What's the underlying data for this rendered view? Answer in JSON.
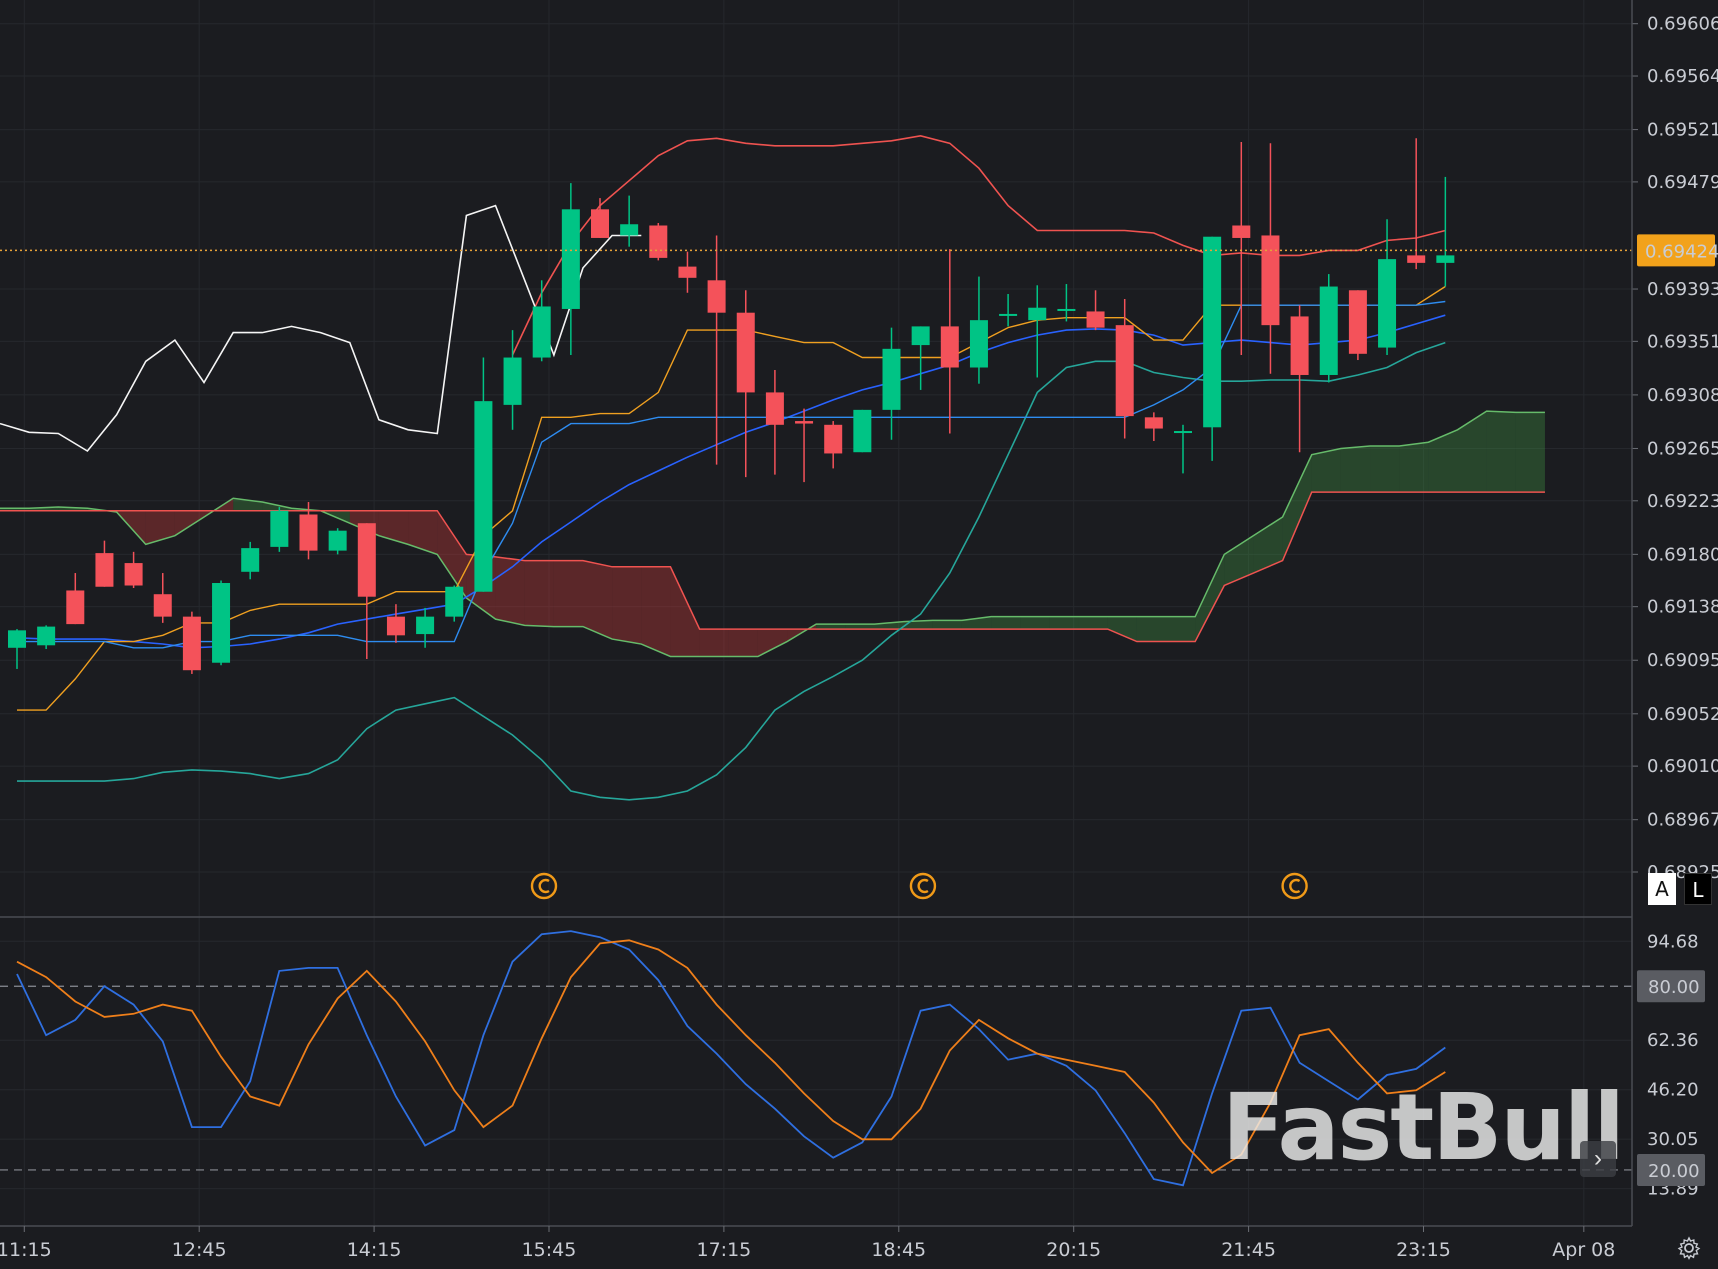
{
  "chart_data": [
    {
      "type": "candlestick",
      "price_axis_labels": [
        "0.69606",
        "0.69564",
        "0.69521",
        "0.69479",
        "0.69393",
        "0.69351",
        "0.69308",
        "0.69265",
        "0.69223",
        "0.69180",
        "0.69138",
        "0.69095",
        "0.69052",
        "0.69010",
        "0.68967",
        "0.68925"
      ],
      "ylim": [
        0.68925,
        0.69617
      ],
      "current_price": "0.69424",
      "time_labels": [
        {
          "label": "11:15",
          "i": 0.25
        },
        {
          "label": "12:45",
          "i": 6.25
        },
        {
          "label": "14:15",
          "i": 12.25
        },
        {
          "label": "15:45",
          "i": 18.25
        },
        {
          "label": "17:15",
          "i": 24.25
        },
        {
          "label": "18:45",
          "i": 30.25
        },
        {
          "label": "20:15",
          "i": 36.25
        },
        {
          "label": "21:45",
          "i": 42.25
        },
        {
          "label": "23:15",
          "i": 48.25
        },
        {
          "label": "Apr 08",
          "i": 53.75
        }
      ],
      "candles": [
        [
          0.69105,
          0.69119,
          0.69088,
          0.6912
        ],
        [
          0.69107,
          0.69122,
          0.69104,
          0.69123
        ],
        [
          0.69151,
          0.69124,
          0.69124,
          0.69165
        ],
        [
          0.69181,
          0.69154,
          0.69154,
          0.69191
        ],
        [
          0.69173,
          0.69155,
          0.69153,
          0.69182
        ],
        [
          0.69148,
          0.6913,
          0.69125,
          0.69165
        ],
        [
          0.6913,
          0.69087,
          0.69084,
          0.69134
        ],
        [
          0.69093,
          0.69157,
          0.69091,
          0.69159
        ],
        [
          0.69166,
          0.69185,
          0.6916,
          0.6919
        ],
        [
          0.69186,
          0.69215,
          0.69182,
          0.69218
        ],
        [
          0.69212,
          0.69183,
          0.69176,
          0.69222
        ],
        [
          0.69183,
          0.69199,
          0.6918,
          0.69201
        ],
        [
          0.69205,
          0.69146,
          0.69096,
          0.69205
        ],
        [
          0.6913,
          0.69115,
          0.69109,
          0.6914
        ],
        [
          0.69116,
          0.6913,
          0.69105,
          0.69137
        ],
        [
          0.6913,
          0.69154,
          0.69126,
          0.69155
        ],
        [
          0.6915,
          0.69303,
          0.6915,
          0.69338
        ],
        [
          0.693,
          0.69338,
          0.6928,
          0.6936
        ],
        [
          0.69338,
          0.69379,
          0.69335,
          0.694
        ],
        [
          0.69377,
          0.69457,
          0.6934,
          0.69478
        ],
        [
          0.69457,
          0.69434,
          0.69434,
          0.69466
        ],
        [
          0.69436,
          0.69445,
          0.69427,
          0.69468
        ],
        [
          0.69444,
          0.69418,
          0.69416,
          0.69446
        ],
        [
          0.69411,
          0.69402,
          0.6939,
          0.69423
        ],
        [
          0.694,
          0.69374,
          0.69252,
          0.69436
        ],
        [
          0.69374,
          0.6931,
          0.69242,
          0.69392
        ],
        [
          0.6931,
          0.69284,
          0.69244,
          0.69328
        ],
        [
          0.69287,
          0.69285,
          0.69238,
          0.69297
        ],
        [
          0.69284,
          0.69261,
          0.69249,
          0.69287
        ],
        [
          0.69262,
          0.69296,
          0.69262,
          0.69296
        ],
        [
          0.69296,
          0.69345,
          0.69272,
          0.69362
        ],
        [
          0.69348,
          0.69363,
          0.69312,
          0.69363
        ],
        [
          0.69363,
          0.6933,
          0.69277,
          0.69425
        ],
        [
          0.6933,
          0.69368,
          0.69317,
          0.69403
        ],
        [
          0.69373,
          0.69373,
          0.69363,
          0.69389
        ],
        [
          0.69368,
          0.69378,
          0.69322,
          0.69396
        ],
        [
          0.69377,
          0.69377,
          0.69367,
          0.69397
        ],
        [
          0.69375,
          0.69362,
          0.6936,
          0.69392
        ],
        [
          0.69364,
          0.69291,
          0.69273,
          0.69385
        ],
        [
          0.6929,
          0.69281,
          0.69271,
          0.69294
        ],
        [
          0.69279,
          0.69279,
          0.69245,
          0.69284
        ],
        [
          0.69282,
          0.69435,
          0.69255,
          0.69435
        ],
        [
          0.69444,
          0.69434,
          0.6934,
          0.69511
        ],
        [
          0.69436,
          0.69364,
          0.69325,
          0.6951
        ],
        [
          0.69371,
          0.69324,
          0.69262,
          0.6938
        ],
        [
          0.69324,
          0.69395,
          0.69318,
          0.69405
        ],
        [
          0.69392,
          0.69341,
          0.69336,
          0.69392
        ],
        [
          0.69346,
          0.69417,
          0.6934,
          0.69449
        ],
        [
          0.6942,
          0.69414,
          0.69409,
          0.69514
        ],
        [
          0.69414,
          0.6942,
          0.69395,
          0.69483
        ]
      ],
      "series": [
        {
          "name": "bollinger-upper",
          "color": "#ef5350",
          "values": [
            null,
            null,
            null,
            null,
            null,
            null,
            null,
            null,
            null,
            null,
            null,
            null,
            null,
            null,
            null,
            null,
            null,
            0.6934,
            0.6939,
            0.6943,
            0.6946,
            0.6948,
            0.695,
            0.69512,
            0.69514,
            0.6951,
            0.69508,
            0.69508,
            0.69508,
            0.6951,
            0.69512,
            0.69516,
            0.6951,
            0.6949,
            0.6946,
            0.6944,
            0.6944,
            0.6944,
            0.6944,
            0.69438,
            0.69428,
            0.6942,
            0.69422,
            0.6942,
            0.6942,
            0.69424,
            0.69424,
            0.69432,
            0.69434,
            0.6944
          ]
        },
        {
          "name": "bollinger-middle",
          "color": "#2962ff",
          "values": [
            0.69113,
            0.69112,
            0.69112,
            0.69112,
            0.6911,
            0.69108,
            0.69105,
            0.69106,
            0.69108,
            0.69112,
            0.69117,
            0.69124,
            0.69128,
            0.69132,
            0.69136,
            0.6914,
            0.69154,
            0.6917,
            0.6919,
            0.69206,
            0.69222,
            0.69236,
            0.69247,
            0.69258,
            0.69268,
            0.69278,
            0.69286,
            0.69295,
            0.69304,
            0.69312,
            0.69318,
            0.69325,
            0.69332,
            0.69342,
            0.6935,
            0.69356,
            0.6936,
            0.69361,
            0.6936,
            0.69356,
            0.69348,
            0.6935,
            0.69352,
            0.6935,
            0.69348,
            0.6935,
            0.69352,
            0.69358,
            0.69365,
            0.69372
          ]
        },
        {
          "name": "bollinger-lower",
          "color": "#26a69a",
          "values": [
            0.68998,
            0.68998,
            0.68998,
            0.68998,
            0.69,
            0.69005,
            0.69007,
            0.69006,
            0.69004,
            0.69,
            0.69004,
            0.69015,
            0.6904,
            0.69055,
            0.6906,
            0.69065,
            0.6905,
            0.69035,
            0.69015,
            0.6899,
            0.68985,
            0.68983,
            0.68985,
            0.6899,
            0.69003,
            0.69025,
            0.69055,
            0.6907,
            0.69082,
            0.69095,
            0.69115,
            0.69132,
            0.69165,
            0.6921,
            0.6926,
            0.6931,
            0.6933,
            0.69335,
            0.69335,
            0.69326,
            0.69322,
            0.69319,
            0.69319,
            0.6932,
            0.6932,
            0.69319,
            0.69324,
            0.6933,
            0.69342,
            0.6935
          ]
        }
      ]
    },
    {
      "type": "line",
      "yaxis_labels": [
        "94.68",
        "62.36",
        "46.20",
        "30.05",
        "13.89"
      ],
      "reference_levels": [
        "80.00",
        "20.00"
      ],
      "ylim": [
        3,
        100
      ],
      "series": [
        {
          "name": "%K",
          "color": "#2f6fe0",
          "values": [
            84,
            64,
            69,
            80,
            74,
            62,
            34,
            34,
            49,
            85,
            86,
            86,
            64,
            44,
            28,
            33,
            64,
            88,
            97,
            98,
            96,
            92,
            82,
            67,
            58,
            48,
            40,
            31,
            24,
            29,
            44,
            72,
            74,
            66,
            56,
            58,
            54,
            46,
            32,
            17,
            15,
            45,
            72,
            73,
            55,
            49,
            43,
            51,
            53,
            60
          ]
        },
        {
          "name": "%D",
          "color": "#ef7f1a",
          "values": [
            88,
            83,
            75,
            70,
            71,
            74,
            72,
            57,
            44,
            41,
            61,
            76,
            85,
            75,
            62,
            46,
            34,
            41,
            63,
            83,
            94,
            95,
            92,
            86,
            74,
            64,
            55,
            45,
            36,
            30,
            30,
            40,
            59,
            69,
            63,
            58,
            56,
            54,
            52,
            42,
            29,
            19,
            25,
            42,
            64,
            66,
            55,
            45,
            46,
            52
          ]
        }
      ]
    }
  ],
  "buttons": {
    "auto_label": "A",
    "log_label": "L",
    "nav_arrow": "›"
  },
  "icons": {
    "settings": "gear-icon",
    "event_marker": "copyright-icon"
  },
  "watermark": "FastBull"
}
